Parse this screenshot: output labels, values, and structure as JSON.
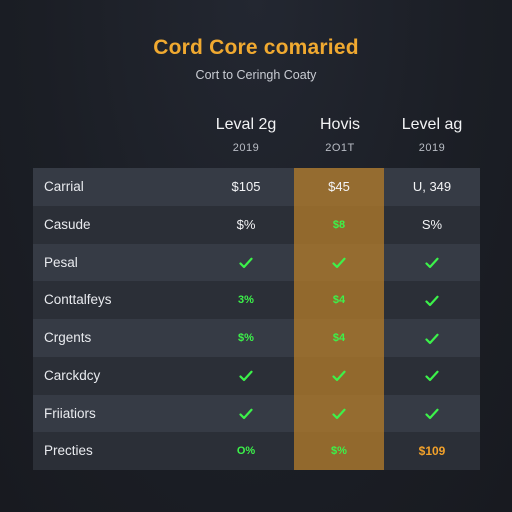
{
  "header": {
    "title": "Cord Core comaried",
    "subtitle": "Cort to Ceringh Coaty"
  },
  "columns": [
    {
      "name": "Leval 2g",
      "year": "2019"
    },
    {
      "name": "Hovis",
      "year": "2O1T"
    },
    {
      "name": "Level ag",
      "year": "2019"
    }
  ],
  "rows": [
    {
      "label": "Carrial",
      "cells": [
        {
          "text": "$105",
          "style": "white"
        },
        {
          "text": "$45",
          "style": "white"
        },
        {
          "text": "U, 349",
          "style": "white"
        }
      ]
    },
    {
      "label": "Casude",
      "cells": [
        {
          "text": "$%",
          "style": "white"
        },
        {
          "text": "$8",
          "style": "green"
        },
        {
          "text": "S%",
          "style": "white"
        }
      ]
    },
    {
      "label": "Pesal",
      "cells": [
        {
          "text": "",
          "style": "check"
        },
        {
          "text": "",
          "style": "check"
        },
        {
          "text": "",
          "style": "check"
        }
      ]
    },
    {
      "label": "Conttalfeys",
      "cells": [
        {
          "text": "3%",
          "style": "green"
        },
        {
          "text": "$4",
          "style": "green"
        },
        {
          "text": "",
          "style": "check"
        }
      ]
    },
    {
      "label": "Crgents",
      "cells": [
        {
          "text": "$%",
          "style": "green"
        },
        {
          "text": "$4",
          "style": "green"
        },
        {
          "text": "",
          "style": "check"
        }
      ]
    },
    {
      "label": "Carckdcy",
      "cells": [
        {
          "text": "",
          "style": "check"
        },
        {
          "text": "",
          "style": "check"
        },
        {
          "text": "",
          "style": "check"
        }
      ]
    },
    {
      "label": "Friiatiors",
      "cells": [
        {
          "text": "",
          "style": "check"
        },
        {
          "text": "",
          "style": "check"
        },
        {
          "text": "",
          "style": "check"
        }
      ]
    },
    {
      "label": "Precties",
      "cells": [
        {
          "text": "O%",
          "style": "green"
        },
        {
          "text": "$%",
          "style": "green"
        },
        {
          "text": "$109",
          "style": "orange"
        }
      ]
    }
  ],
  "icons": {
    "check": "check-icon"
  },
  "colors": {
    "title": "#f0a930",
    "highlight_column": "#b07a2a",
    "check_green": "#3cf24a",
    "accent_orange": "#f2a12a",
    "row_light": "#363b45",
    "row_dark": "#2b2f37"
  }
}
